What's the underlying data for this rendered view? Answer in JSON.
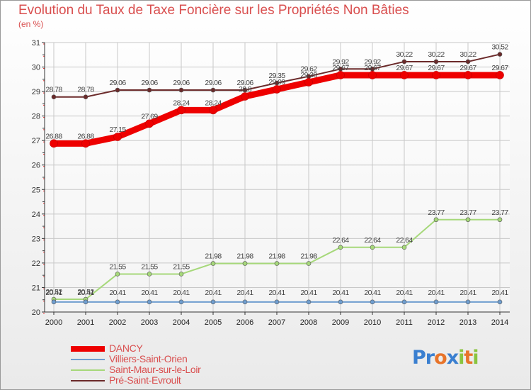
{
  "chart_data": {
    "type": "line",
    "title": "Evolution du Taux de Taxe Foncière sur les Propriétés Non Bâties",
    "subtitle": "(en %)",
    "x": [
      "2000",
      "2001",
      "2002",
      "2003",
      "2004",
      "2005",
      "2006",
      "2007",
      "2008",
      "2009",
      "2010",
      "2011",
      "2012",
      "2013",
      "2014"
    ],
    "ylim": [
      20,
      31
    ],
    "yticks": [
      "20",
      "21",
      "22",
      "23",
      "24",
      "25",
      "26",
      "27",
      "28",
      "29",
      "30",
      "31"
    ],
    "series": [
      {
        "name": "Pré-Saint-Evroult",
        "color": "#6b2a2a",
        "values": [
          28.78,
          28.78,
          29.06,
          29.06,
          29.06,
          29.06,
          29.06,
          29.35,
          29.62,
          29.92,
          29.92,
          30.22,
          30.22,
          30.22,
          30.52
        ],
        "labels": [
          "28.78",
          "28.78",
          "29.06",
          "29.06",
          "29.06",
          "29.06",
          "29.06",
          "29.35",
          "29.62",
          "29.92",
          "29.92",
          "30.22",
          "30.22",
          "30.22",
          "30.52"
        ]
      },
      {
        "name": "Saint-Maur-sur-le-Loir",
        "color": "#a6d87a",
        "values": [
          20.52,
          20.52,
          21.55,
          21.55,
          21.55,
          21.98,
          21.98,
          21.98,
          21.98,
          22.64,
          22.64,
          22.64,
          23.77,
          23.77,
          23.77
        ],
        "labels": [
          "20.52",
          "20.52",
          "21.55",
          "21.55",
          "21.55",
          "21.98",
          "21.98",
          "21.98",
          "21.98",
          "22.64",
          "22.64",
          "22.64",
          "23.77",
          "23.77",
          "23.77"
        ]
      },
      {
        "name": "Villiers-Saint-Orien",
        "color": "#6f9ed0",
        "values": [
          20.41,
          20.41,
          20.41,
          20.41,
          20.41,
          20.41,
          20.41,
          20.41,
          20.41,
          20.41,
          20.41,
          20.41,
          20.41,
          20.41,
          20.41
        ],
        "labels": [
          "20.41",
          "20.41",
          "20.41",
          "20.41",
          "20.41",
          "20.41",
          "20.41",
          "20.41",
          "20.41",
          "20.41",
          "20.41",
          "20.41",
          "20.41",
          "20.41",
          "20.41"
        ]
      },
      {
        "name": "DANCY",
        "color": "#ee0000",
        "values": [
          26.88,
          26.88,
          27.15,
          27.69,
          28.24,
          28.24,
          28.8,
          29.09,
          29.38,
          29.67,
          29.67,
          29.67,
          29.67,
          29.67,
          29.67
        ],
        "labels": [
          "26.88",
          "26.88",
          "27.15",
          "27.69",
          "28.24",
          "28.24",
          "28.8",
          "29.09",
          "29.38",
          "29.67",
          "29.67",
          "29.67",
          "29.67",
          "29.67",
          "29.67"
        ]
      }
    ],
    "legend": [
      "DANCY",
      "Villiers-Saint-Orien",
      "Saint-Maur-sur-le-Loir",
      "Pré-Saint-Evroult"
    ],
    "legend_position": "bottom-left"
  },
  "logo": {
    "letters": [
      "P",
      "r",
      "o",
      "x",
      "i",
      "t",
      "i"
    ],
    "colors": [
      "#3a7fd0",
      "#3a7fd0",
      "#e8742a",
      "#3a7fd0",
      "#8ac43f",
      "#e8742a",
      "#8ac43f"
    ]
  }
}
